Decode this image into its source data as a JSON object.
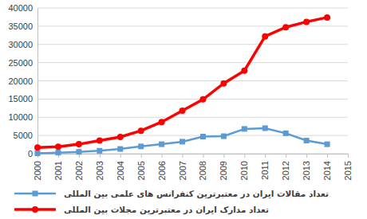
{
  "chart_data": {
    "type": "line",
    "x": [
      2000,
      2001,
      2002,
      2003,
      2004,
      2005,
      2006,
      2007,
      2008,
      2009,
      2010,
      2011,
      2012,
      2013,
      2014
    ],
    "series": [
      {
        "name": "تعداد مقالات ایران در معتبرترین کنفرانس های علمی بین المللی",
        "color": "#5b9bd5",
        "marker": "square",
        "values": [
          100,
          300,
          500,
          800,
          1300,
          2000,
          2600,
          3300,
          4700,
          4800,
          6800,
          7000,
          5600,
          3600,
          2600
        ]
      },
      {
        "name": "تعداد مدارک ایران در معتبرترین مجلات بین المللی",
        "color": "#ff0000",
        "marker": "circle",
        "values": [
          1700,
          1900,
          2600,
          3600,
          4600,
          6300,
          8700,
          11800,
          14900,
          19300,
          22800,
          32200,
          34700,
          36200,
          37400
        ]
      }
    ],
    "xlim": [
      2000,
      2015
    ],
    "xticks": [
      2000,
      2001,
      2002,
      2003,
      2004,
      2005,
      2006,
      2007,
      2008,
      2009,
      2010,
      2011,
      2012,
      2013,
      2014,
      2015
    ],
    "ylim": [
      0,
      40000
    ],
    "yticks": [
      0,
      5000,
      10000,
      15000,
      20000,
      25000,
      30000,
      35000,
      40000
    ],
    "grid": true,
    "legend": "bottom"
  }
}
